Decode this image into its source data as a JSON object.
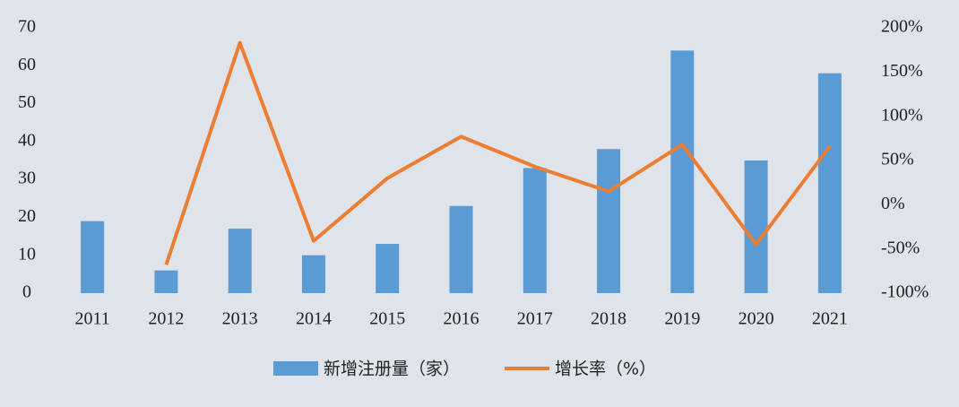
{
  "chart_data": {
    "type": "bar-line",
    "categories": [
      "2011",
      "2012",
      "2013",
      "2014",
      "2015",
      "2016",
      "2017",
      "2018",
      "2019",
      "2020",
      "2021"
    ],
    "series": [
      {
        "name": "新增注册量（家）",
        "type": "bar",
        "color": "#5b9bd5",
        "values": [
          19,
          6,
          17,
          10,
          13,
          23,
          33,
          38,
          64,
          35,
          58
        ]
      },
      {
        "name": "增长率（%）",
        "type": "line",
        "axis": "y2",
        "color": "#ed7d31",
        "values": [
          null,
          -68,
          183,
          -41,
          30,
          77,
          43,
          15,
          68,
          -45,
          66
        ]
      }
    ],
    "ylim": [
      0,
      70
    ],
    "yticks": [
      0,
      10,
      20,
      30,
      40,
      50,
      60,
      70
    ],
    "y2lim": [
      -100,
      200
    ],
    "y2ticks": [
      {
        "value": -100,
        "label": "-100%"
      },
      {
        "value": -50,
        "label": "-50%"
      },
      {
        "value": 0,
        "label": "0%"
      },
      {
        "value": 50,
        "label": "50%"
      },
      {
        "value": 100,
        "label": "100%"
      },
      {
        "value": 150,
        "label": "150%"
      },
      {
        "value": 200,
        "label": "200%"
      }
    ],
    "legend": "bottom"
  }
}
